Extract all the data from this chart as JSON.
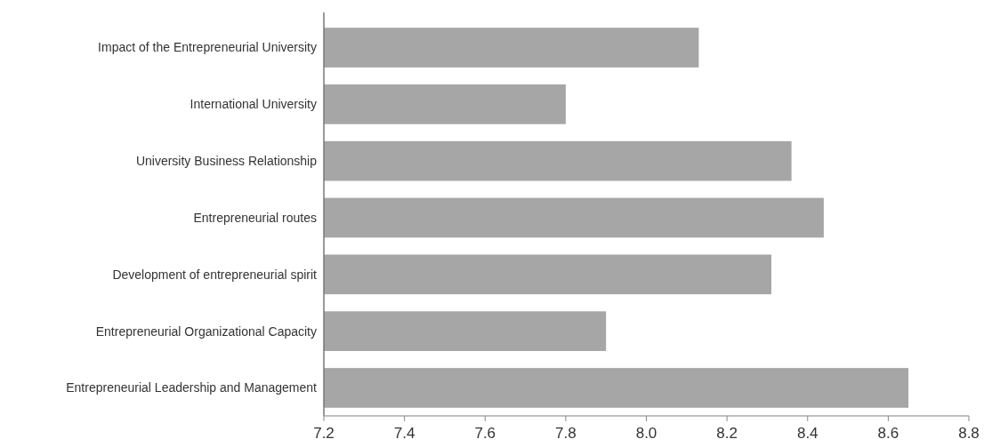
{
  "chart_data": {
    "type": "bar",
    "orientation": "horizontal",
    "categories": [
      "Impact of the Entrepreneurial University",
      "International University",
      "University Business Relationship",
      "Entrepreneurial routes",
      "Development of entrepreneurial spirit",
      "Entrepreneurial Organizational Capacity",
      "Entrepreneurial Leadership and Management"
    ],
    "values": [
      8.13,
      7.8,
      8.36,
      8.44,
      8.31,
      7.9,
      8.65
    ],
    "color": "#a6a6a6",
    "xlim": [
      7.2,
      8.8
    ],
    "xticks": [
      7.2,
      7.4,
      7.6,
      7.8,
      {
        "value": 8,
        "label": "8.0"
      },
      8.2,
      8.4,
      8.6,
      8.8
    ],
    "grid": false
  }
}
